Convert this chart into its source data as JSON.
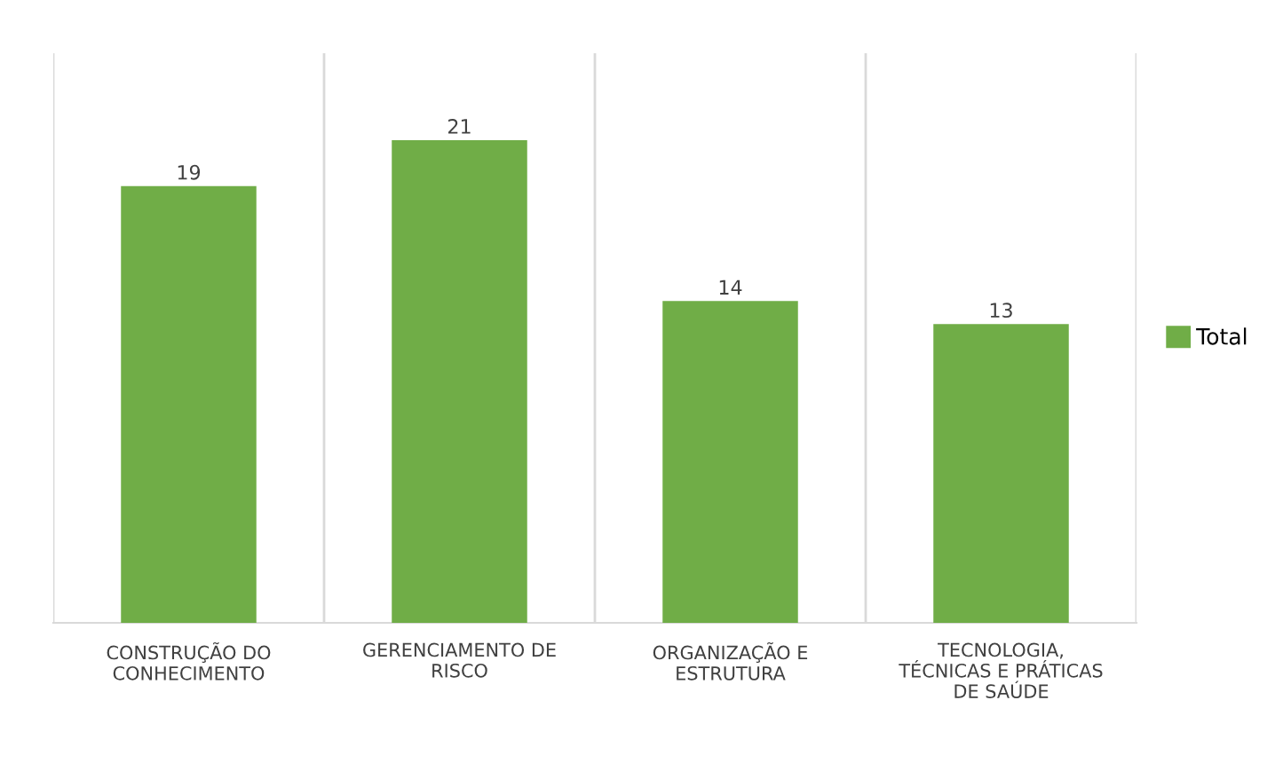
{
  "chart_data": {
    "type": "bar",
    "categories": [
      "CONSTRUÇÃO DO\nCONHECIMENTO",
      "GERENCIAMENTO DE\nRISCO",
      "ORGANIZAÇÃO E\nESTRUTURA",
      "TECNOLOGIA,\nTÉCNICAS E PRÁTICAS\nDE SAÚDE"
    ],
    "series": [
      {
        "name": "Total",
        "color": "#70ad47",
        "values": [
          19,
          21,
          14,
          13
        ]
      }
    ],
    "data_labels": true,
    "grid": "x",
    "legend": "right"
  }
}
